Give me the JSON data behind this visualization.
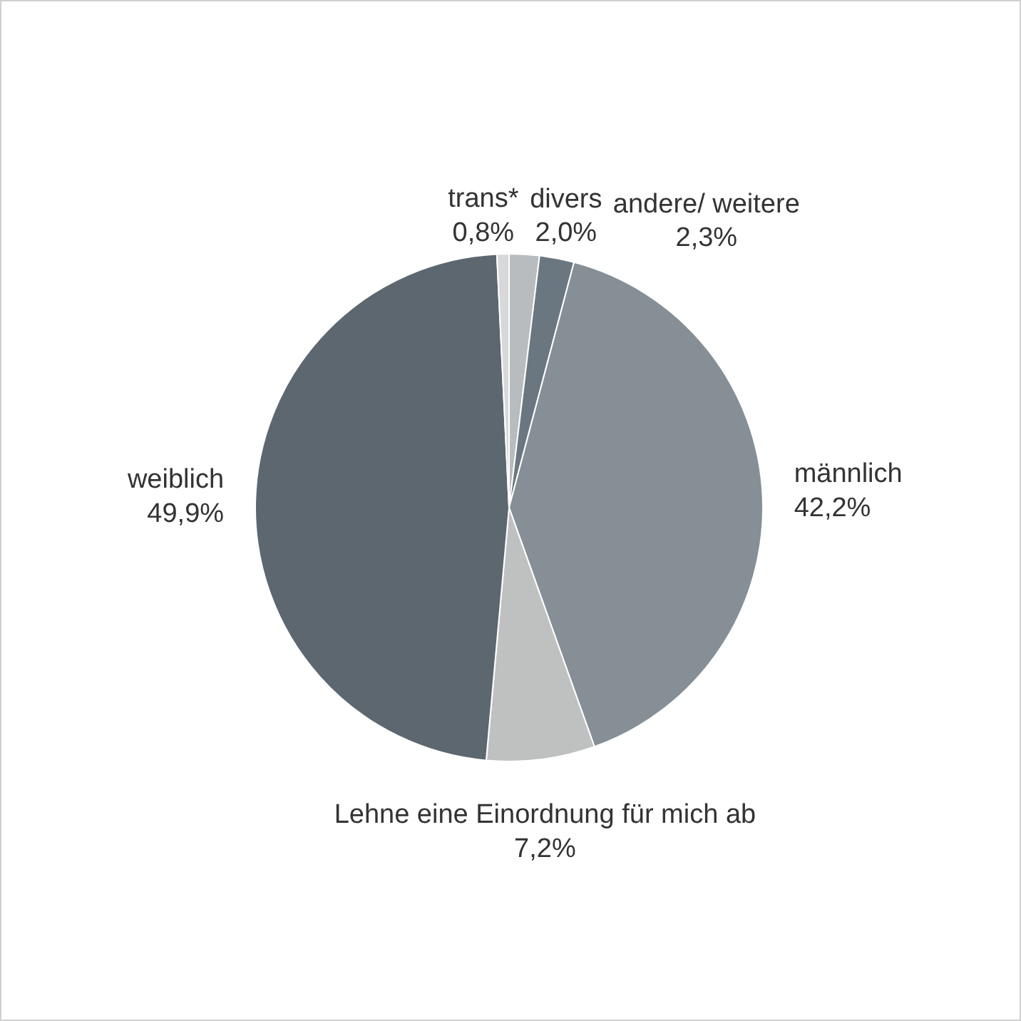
{
  "chart_data": {
    "type": "pie",
    "categories": [
      "divers",
      "andere/ weitere",
      "männlich",
      "Lehne eine Einordnung für mich ab",
      "weiblich",
      "trans*"
    ],
    "values": [
      2.0,
      2.3,
      42.2,
      7.2,
      49.9,
      0.8
    ],
    "colors": [
      "#b9bcbe",
      "#6b7780",
      "#868f95",
      "#bfc1c1",
      "#5c6770",
      "#d6d8d9"
    ],
    "value_labels": [
      "2,0%",
      "2,3%",
      "42,2%",
      "7,2%",
      "49,9%",
      "0,8%"
    ]
  }
}
